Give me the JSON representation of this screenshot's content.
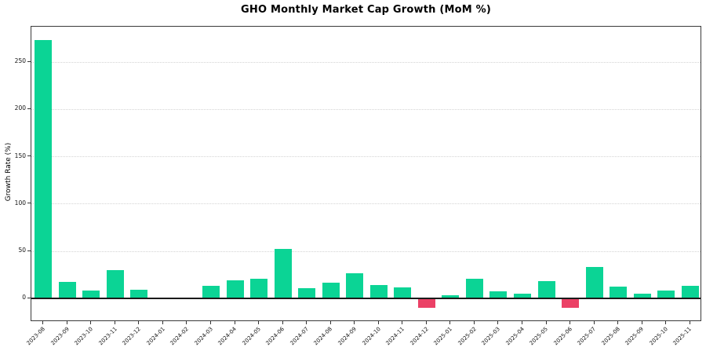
{
  "chart_data": {
    "type": "bar",
    "title": "GHO Monthly Market Cap Growth (MoM %)",
    "xlabel": "",
    "ylabel": "Growth Rate (%)",
    "categories": [
      "2023-08",
      "2023-09",
      "2023-10",
      "2023-11",
      "2023-12",
      "2024-01",
      "2024-02",
      "2024-03",
      "2024-04",
      "2024-05",
      "2024-06",
      "2024-07",
      "2024-08",
      "2024-09",
      "2024-10",
      "2024-11",
      "2024-12",
      "2025-01",
      "2025-02",
      "2025-03",
      "2025-04",
      "2025-05",
      "2025-06",
      "2025-07",
      "2025-08",
      "2025-09",
      "2025-10",
      "2025-11"
    ],
    "values": [
      272.5,
      17,
      8.5,
      29.5,
      9,
      0,
      0,
      13,
      19,
      20.5,
      52,
      10.5,
      16.5,
      26.5,
      14,
      11.5,
      -10,
      3,
      20.5,
      7,
      4.5,
      18.5,
      -10,
      33,
      12,
      5,
      8.5,
      13.5
    ],
    "yticks": [
      0,
      50,
      100,
      150,
      200,
      250
    ],
    "ylim": [
      -25,
      287
    ],
    "grid": "horizontal-dotted",
    "legend": "none",
    "colors": {
      "positive_bar": "#0bd495",
      "negative_bar": "#eb4166",
      "gridline": "#d4d4d4",
      "zero_line": "#1a1a1a",
      "axis": "#3a3a3a",
      "text": "#111111",
      "background": "#ffffff"
    }
  }
}
